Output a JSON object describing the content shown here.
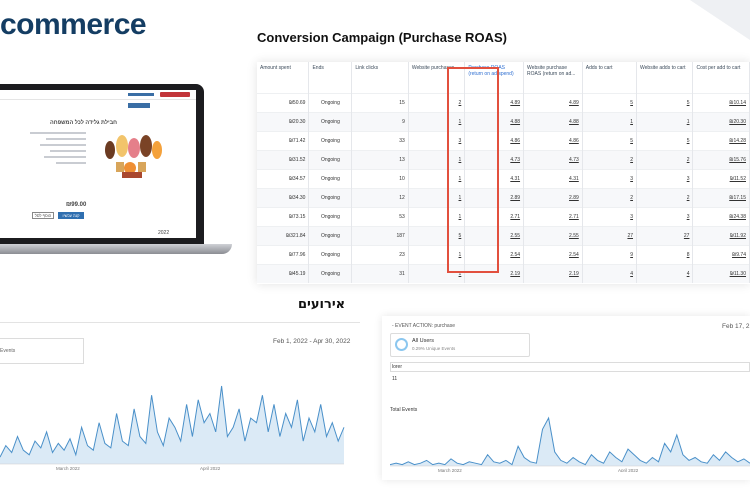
{
  "brand": {
    "text": "commerce"
  },
  "campaign": {
    "title": "Conversion Campaign (Purchase ROAS)"
  },
  "laptop": {
    "product_title": "חבילת גלידה לכל המשפחה",
    "price": "₪99.00",
    "footer_year": "2022",
    "add_button": "הוסף לסל",
    "buy_button": "קנה עכשיו"
  },
  "table": {
    "headers": [
      "Amount spent",
      "Ends",
      "Link clicks",
      "Website purchases",
      "Purchase ROAS (return on ad spend)",
      "Website purchase ROAS (return on ad...",
      "Adds to cart",
      "Website adds to cart",
      "Cost per add to cart"
    ],
    "rows": [
      [
        "₪50.69",
        "Ongoing",
        "15",
        "2",
        "4.89",
        "4.89",
        "5",
        "5",
        "₪10.14"
      ],
      [
        "₪20.30",
        "Ongoing",
        "9",
        "1",
        "4.88",
        "4.88",
        "1",
        "1",
        "₪20.30"
      ],
      [
        "₪71.42",
        "Ongoing",
        "33",
        "3",
        "4.86",
        "4.86",
        "5",
        "5",
        "₪14.28"
      ],
      [
        "₪31.52",
        "Ongoing",
        "13",
        "1",
        "4.73",
        "4.73",
        "2",
        "2",
        "₪15.76"
      ],
      [
        "₪34.57",
        "Ongoing",
        "10",
        "1",
        "4.31",
        "4.31",
        "3",
        "3",
        "₪11.52"
      ],
      [
        "₪34.30",
        "Ongoing",
        "12",
        "1",
        "2.89",
        "2.89",
        "2",
        "2",
        "₪17.15"
      ],
      [
        "₪73.15",
        "Ongoing",
        "53",
        "1",
        "2.71",
        "2.71",
        "3",
        "3",
        "₪24.38"
      ],
      [
        "₪321.84",
        "Ongoing",
        "187",
        "5",
        "2.55",
        "2.55",
        "27",
        "27",
        "₪11.92"
      ],
      [
        "₪77.96",
        "Ongoing",
        "23",
        "1",
        "2.54",
        "2.54",
        "9",
        "8",
        "₪9.74"
      ],
      [
        "₪45.19",
        "Ongoing",
        "31",
        "1",
        "2.19",
        "2.19",
        "4",
        "4",
        "₪11.30"
      ]
    ]
  },
  "events_heading": "אירועים",
  "left_panel": {
    "date_range": "Feb 1, 2022 - Apr 30, 2022",
    "card_label": "Events",
    "axis_march": "March 2022",
    "axis_april": "April 2022"
  },
  "right_panel": {
    "event_action": "- EVENT ACTION: purchase",
    "date_range": "Feb 17, 2",
    "users_label": "All Users",
    "users_sub": "0.29% Unique Events",
    "search_value": "lorer",
    "row_value": "11",
    "total_events_label": "Total Events",
    "axis_march": "March 2022",
    "axis_april": "April 2022"
  },
  "colors": {
    "brand": "#143d63",
    "highlight": "#e2503e",
    "line": "#4a90c9",
    "area": "#dbeaf6"
  },
  "series": {
    "left_events": [
      3,
      8,
      5,
      12,
      6,
      4,
      10,
      7,
      14,
      5,
      9,
      6,
      11,
      4,
      16,
      8,
      6,
      18,
      9,
      7,
      22,
      10,
      8,
      24,
      12,
      9,
      30,
      14,
      8,
      20,
      16,
      10,
      26,
      12,
      28,
      18,
      22,
      14,
      34,
      12,
      16,
      24,
      10,
      20,
      18,
      30,
      14,
      26,
      12,
      22,
      16,
      28,
      10,
      20,
      14,
      26,
      12,
      18,
      10,
      16
    ],
    "right_events": [
      1,
      2,
      1,
      3,
      1,
      2,
      4,
      1,
      2,
      1,
      5,
      2,
      1,
      3,
      2,
      1,
      8,
      3,
      2,
      4,
      1,
      14,
      6,
      3,
      2,
      26,
      34,
      10,
      4,
      2,
      6,
      3,
      1,
      8,
      4,
      2,
      10,
      6,
      3,
      12,
      8,
      4,
      2,
      6,
      3,
      16,
      10,
      22,
      8,
      4,
      6,
      3,
      2,
      8,
      4,
      10,
      6,
      3,
      5,
      2
    ]
  }
}
